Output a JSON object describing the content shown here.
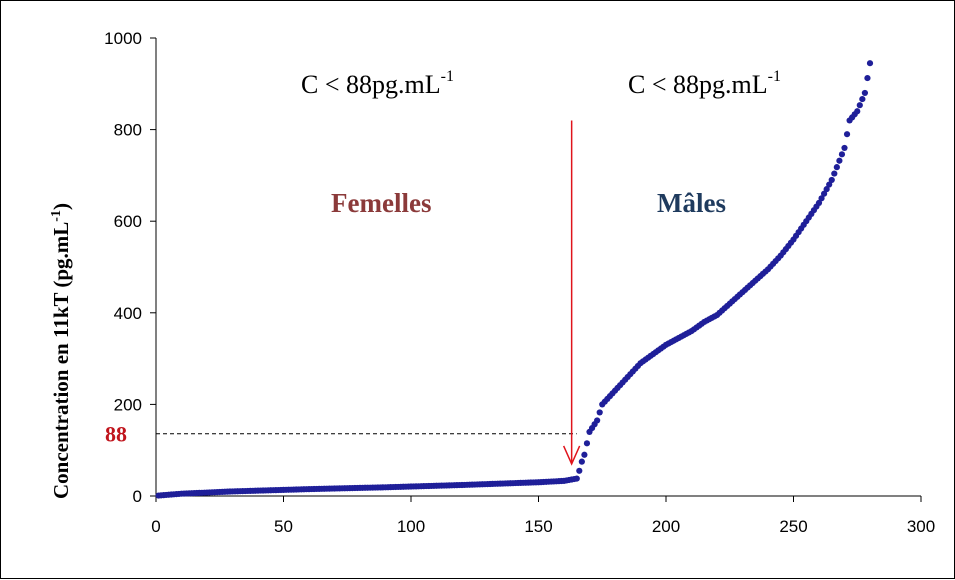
{
  "chart_data": {
    "type": "scatter",
    "title": "",
    "xlabel": "",
    "ylabel": "Concentration en 11kT (pg.mL-1)",
    "ylabel_parts": {
      "main": "Concentration en 11kT (pg.mL",
      "sup": "-1",
      "end": ")"
    },
    "xlim": [
      0,
      300
    ],
    "ylim": [
      0,
      1000
    ],
    "x_ticks": [
      "0",
      "50",
      "100",
      "150",
      "200",
      "250",
      "300"
    ],
    "y_ticks": [
      "0",
      "200",
      "400",
      "600",
      "800",
      "1000"
    ],
    "grid": false,
    "legend": "none",
    "marker_color": "#1f1f99",
    "threshold": {
      "value": 88,
      "label": "88",
      "color": "#c0141c",
      "x_end": 165
    },
    "arrow": {
      "x": 163,
      "y_from": 820,
      "y_to": 70,
      "color": "#e0141c"
    },
    "annotations": {
      "left_condition": {
        "text": "C < 88pg.mL",
        "sup": "-1"
      },
      "right_condition": {
        "text": "C < 88pg.mL",
        "sup": "-1"
      },
      "left_group": {
        "text": "Femelles",
        "color": "#8b3a3a"
      },
      "right_group": {
        "text": "Mâles",
        "color": "#1f3b5e"
      }
    },
    "series": [
      {
        "control_points": [
          [
            1,
            1
          ],
          [
            10,
            5
          ],
          [
            30,
            10
          ],
          [
            60,
            15
          ],
          [
            90,
            19
          ],
          [
            120,
            24
          ],
          [
            150,
            30
          ],
          [
            160,
            33
          ],
          [
            165,
            38
          ],
          [
            166,
            55
          ],
          [
            167,
            75
          ],
          [
            168,
            90
          ],
          [
            170,
            140
          ],
          [
            173,
            165
          ],
          [
            175,
            200
          ],
          [
            180,
            230
          ],
          [
            185,
            260
          ],
          [
            190,
            290
          ],
          [
            195,
            310
          ],
          [
            200,
            330
          ],
          [
            205,
            345
          ],
          [
            210,
            360
          ],
          [
            215,
            380
          ],
          [
            220,
            395
          ],
          [
            225,
            420
          ],
          [
            230,
            445
          ],
          [
            235,
            470
          ],
          [
            240,
            495
          ],
          [
            245,
            525
          ],
          [
            250,
            560
          ],
          [
            255,
            600
          ],
          [
            260,
            640
          ],
          [
            265,
            690
          ],
          [
            270,
            760
          ],
          [
            272,
            820
          ],
          [
            275,
            840
          ],
          [
            278,
            880
          ],
          [
            280,
            945
          ]
        ],
        "count": 280
      }
    ]
  }
}
